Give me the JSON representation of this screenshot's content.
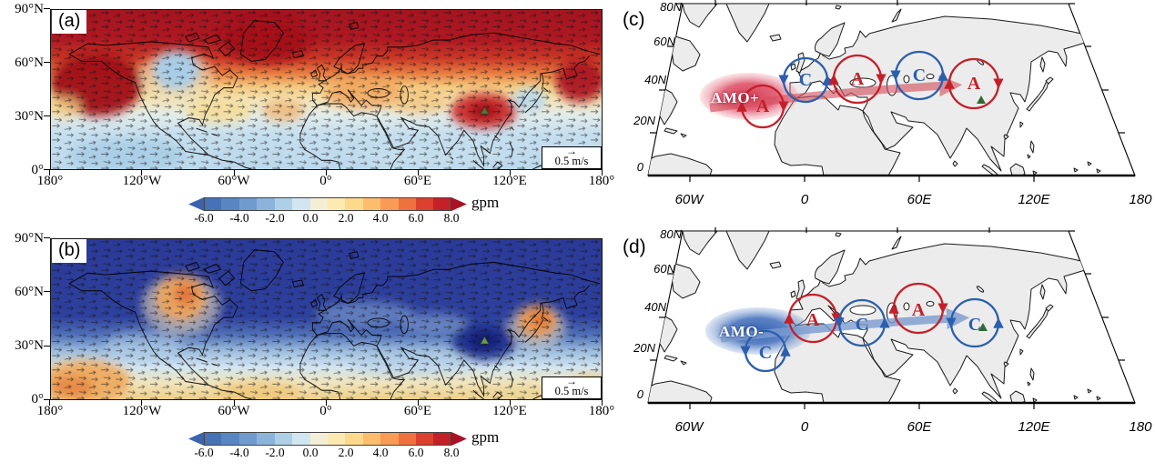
{
  "figure": {
    "panel_a": {
      "label": "(a)",
      "y_ticks": [
        "90°N",
        "60°N",
        "30°N",
        "0°"
      ],
      "x_ticks": [
        "180°",
        "120°W",
        "60°W",
        "0°",
        "60°E",
        "120°E",
        "180°"
      ],
      "ref_vector": "0.5 m/s",
      "ref_arrow": "→"
    },
    "panel_b": {
      "label": "(b)",
      "y_ticks": [
        "90°N",
        "60°N",
        "30°N",
        "0°"
      ],
      "x_ticks": [
        "180°",
        "120°W",
        "60°W",
        "0°",
        "60°E",
        "120°E",
        "180°"
      ],
      "ref_vector": "0.5 m/s",
      "ref_arrow": "→"
    },
    "panel_c": {
      "label": "(c)",
      "y_ticks": [
        "80N",
        "60N",
        "40N",
        "20N",
        "0"
      ],
      "x_ticks": [
        "60W",
        "0",
        "60E",
        "120E",
        "180"
      ],
      "ellipse_label": "AMO+",
      "cells": [
        "A",
        "C",
        "A",
        "C",
        "A"
      ]
    },
    "panel_d": {
      "label": "(d)",
      "y_ticks": [
        "80N",
        "60N",
        "40N",
        "20N",
        "0"
      ],
      "x_ticks": [
        "60W",
        "0",
        "60E",
        "120E",
        "180"
      ],
      "ellipse_label": "AMO-",
      "cells": [
        "C",
        "A",
        "C",
        "A",
        "C"
      ]
    }
  },
  "colorbar": {
    "ticks": [
      "-6.0",
      "-4.0",
      "-2.0",
      "0.0",
      "2.0",
      "4.0",
      "6.0",
      "8.0"
    ],
    "unit": "gpm"
  },
  "colors": {
    "colorbar": [
      "#3c63ae",
      "#4673b6",
      "#5886c2",
      "#6f9bce",
      "#8cb3da",
      "#aed0e6",
      "#d2e6f1",
      "#f5eed7",
      "#fdeab2",
      "#fdd98c",
      "#fdbd6d",
      "#f99b55",
      "#ef713e",
      "#dc402e",
      "#c32127",
      "#a91125"
    ],
    "anticyclone_red": "#c4202a",
    "cyclone_blue": "#2b5fae",
    "amo_plus_red": "#d5344e",
    "amo_minus_blue": "#2e5cb0",
    "land_gray": "#ececec",
    "marker_green": "#3f7d3c"
  },
  "chart_data": [
    {
      "type": "heatmap",
      "panel": "a",
      "title": "Geopotential height (shading) and wind (vectors) anomalies, AMO warm phase",
      "units": "gpm",
      "value_ticks": [
        -6.0,
        -4.0,
        -2.0,
        0.0,
        2.0,
        4.0,
        6.0,
        8.0
      ],
      "lon_range": [
        -180,
        180
      ],
      "lat_range": [
        0,
        90
      ],
      "reference_vector_m_s": 0.5,
      "positive_centers": [
        {
          "lon": -150,
          "lat": 47
        },
        {
          "lon": -30,
          "lat": 72
        },
        {
          "lon": 25,
          "lat": 46
        },
        {
          "lon": 103,
          "lat": 32
        },
        {
          "lon": 166,
          "lat": 50
        }
      ],
      "negative_centers": [
        {
          "lon": -98,
          "lat": 56
        },
        {
          "lon": 133,
          "lat": 39
        },
        {
          "lon": -130,
          "lat": 7
        },
        {
          "lon": 70,
          "lat": 8
        }
      ],
      "site_marker": {
        "lon": 103,
        "lat": 32,
        "symbol": "green triangle"
      }
    },
    {
      "type": "heatmap",
      "panel": "b",
      "title": "Geopotential height (shading) and wind (vectors) anomalies, AMO cold phase",
      "units": "gpm",
      "value_ticks": [
        -6.0,
        -4.0,
        -2.0,
        0.0,
        2.0,
        4.0,
        6.0,
        8.0
      ],
      "lon_range": [
        -180,
        180
      ],
      "lat_range": [
        0,
        90
      ],
      "reference_vector_m_s": 0.5,
      "positive_centers": [
        {
          "lon": -95,
          "lat": 57
        },
        {
          "lon": -158,
          "lat": 8
        },
        {
          "lon": 140,
          "lat": 42
        },
        {
          "lon": -45,
          "lat": 4
        }
      ],
      "negative_centers": [
        {
          "lon": 103,
          "lat": 32
        },
        {
          "lon": -30,
          "lat": 70
        },
        {
          "lon": 60,
          "lat": 60
        }
      ],
      "site_marker": {
        "lon": 103,
        "lat": 32,
        "symbol": "green triangle"
      }
    },
    {
      "type": "scatter",
      "panel": "c",
      "title": "AMO+ teleconnection schematic over Eurasia",
      "source": {
        "label": "AMO+",
        "lon": -38,
        "lat": 32
      },
      "nodes": [
        {
          "label": "A",
          "circulation": "anticyclone",
          "lon": -15,
          "lat": 28
        },
        {
          "label": "C",
          "circulation": "cyclone",
          "lon": 2,
          "lat": 40
        },
        {
          "label": "A",
          "circulation": "anticyclone",
          "lon": 30,
          "lat": 40
        },
        {
          "label": "C",
          "circulation": "cyclone",
          "lon": 62,
          "lat": 42
        },
        {
          "label": "A",
          "circulation": "anticyclone",
          "lon": 95,
          "lat": 38
        }
      ],
      "wave_path": "eastward arrow from North Atlantic to East Asia",
      "site_marker": {
        "lon": 100,
        "lat": 30,
        "symbol": "green triangle"
      }
    },
    {
      "type": "scatter",
      "panel": "d",
      "title": "AMO- teleconnection schematic over Eurasia",
      "source": {
        "label": "AMO-",
        "lon": -36,
        "lat": 31
      },
      "nodes": [
        {
          "label": "C",
          "circulation": "cyclone",
          "lon": -14,
          "lat": 24
        },
        {
          "label": "A",
          "circulation": "anticyclone",
          "lon": 12,
          "lat": 38
        },
        {
          "label": "C",
          "circulation": "cyclone",
          "lon": 38,
          "lat": 36
        },
        {
          "label": "A",
          "circulation": "anticyclone",
          "lon": 64,
          "lat": 43
        },
        {
          "label": "C",
          "circulation": "cyclone",
          "lon": 95,
          "lat": 36
        }
      ],
      "wave_path": "eastward arrow from North Atlantic to East Asia",
      "site_marker": {
        "lon": 100,
        "lat": 30,
        "symbol": "green triangle"
      }
    }
  ]
}
